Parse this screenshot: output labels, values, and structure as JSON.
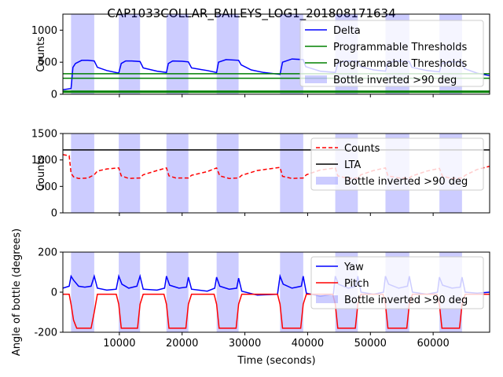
{
  "chart_data": [
    {
      "type": "line",
      "title": "CAP1033COLLAR_BAILEYS_LOG1_201808171634",
      "xlabel": "",
      "ylabel": "Counts",
      "xlim": [
        1000,
        69000
      ],
      "ylim": [
        0,
        1250
      ],
      "yticks": [
        0,
        500,
        1000
      ],
      "legend": "top-right",
      "inverted_spans": [
        [
          2300,
          6000
        ],
        [
          9900,
          13300
        ],
        [
          17500,
          21000
        ],
        [
          25500,
          29000
        ],
        [
          35600,
          39300
        ],
        [
          44400,
          48000
        ],
        [
          52400,
          56200
        ],
        [
          61000,
          64600
        ]
      ],
      "series": [
        {
          "name": "Delta",
          "color": "#0000ff",
          "style": "solid",
          "x": [
            1000,
            2300,
            2600,
            3000,
            4000,
            5000,
            6000,
            6500,
            8000,
            9900,
            10300,
            11000,
            12000,
            13300,
            13800,
            16000,
            17500,
            17800,
            18500,
            20000,
            21000,
            21500,
            24000,
            25500,
            25800,
            27000,
            29000,
            29400,
            31000,
            33000,
            35600,
            36000,
            37500,
            39300,
            39700,
            42000,
            44400,
            44800,
            46000,
            48000,
            48400,
            50500,
            52400,
            52800,
            54000,
            56200,
            56600,
            59000,
            61000,
            61400,
            63000,
            64600,
            65000,
            67000,
            69000
          ],
          "y": [
            70,
            90,
            420,
            480,
            530,
            530,
            520,
            420,
            370,
            330,
            480,
            520,
            520,
            510,
            410,
            360,
            340,
            480,
            520,
            515,
            505,
            410,
            370,
            340,
            500,
            540,
            530,
            460,
            380,
            340,
            310,
            500,
            550,
            540,
            430,
            360,
            340,
            480,
            520,
            515,
            430,
            380,
            360,
            490,
            520,
            510,
            420,
            370,
            350,
            480,
            510,
            500,
            400,
            330,
            290
          ]
        },
        {
          "name": "Programmable Thresholds",
          "color": "#008000",
          "style": "solid",
          "x": [
            1000,
            69000
          ],
          "y": [
            320,
            320
          ]
        },
        {
          "name": "Programmable Thresholds",
          "color": "#008000",
          "style": "solid",
          "x": [
            1000,
            69000
          ],
          "y": [
            250,
            250
          ]
        },
        {
          "name": "",
          "color": "#008000",
          "style": "solid",
          "x": [
            1000,
            69000
          ],
          "y": [
            40,
            40
          ]
        }
      ],
      "legend_entries": [
        "Delta",
        "Programmable Thresholds",
        "Programmable Thresholds",
        "Bottle inverted >90 deg"
      ]
    },
    {
      "type": "line",
      "title": "",
      "xlabel": "",
      "ylabel": "Counts",
      "xlim": [
        1000,
        69000
      ],
      "ylim": [
        0,
        1500
      ],
      "yticks": [
        0,
        500,
        1000,
        1500
      ],
      "legend": "top-right",
      "inverted_spans": [
        [
          2300,
          6000
        ],
        [
          9900,
          13300
        ],
        [
          17500,
          21000
        ],
        [
          25500,
          29000
        ],
        [
          35600,
          39300
        ],
        [
          44400,
          48000
        ],
        [
          52400,
          56200
        ],
        [
          61000,
          64600
        ]
      ],
      "series": [
        {
          "name": "Counts",
          "color": "#ff0000",
          "style": "dashed",
          "x": [
            1000,
            2000,
            2300,
            2700,
            3500,
            5000,
            6000,
            6500,
            8000,
            9900,
            10300,
            11500,
            13300,
            13800,
            16000,
            17500,
            17900,
            19000,
            21000,
            21500,
            24000,
            25500,
            26000,
            27500,
            29000,
            29500,
            32000,
            35600,
            36000,
            37500,
            39300,
            39800,
            42000,
            44400,
            44800,
            46500,
            48000,
            48500,
            50500,
            52400,
            52800,
            54500,
            56200,
            56700,
            59000,
            61000,
            61500,
            63000,
            64600,
            65100,
            67000,
            69000
          ],
          "y": [
            1100,
            1080,
            750,
            680,
            650,
            660,
            720,
            790,
            830,
            850,
            700,
            650,
            660,
            720,
            800,
            850,
            700,
            660,
            660,
            710,
            780,
            850,
            700,
            650,
            660,
            710,
            800,
            860,
            690,
            650,
            660,
            720,
            810,
            850,
            700,
            650,
            660,
            720,
            800,
            850,
            700,
            660,
            660,
            700,
            790,
            840,
            690,
            650,
            660,
            710,
            820,
            880
          ]
        },
        {
          "name": "LTA",
          "color": "#000000",
          "style": "solid",
          "x": [
            1000,
            69000
          ],
          "y": [
            1190,
            1190
          ]
        }
      ],
      "legend_entries": [
        "Counts",
        "LTA",
        "Bottle inverted >90 deg"
      ]
    },
    {
      "type": "line",
      "title": "",
      "xlabel": "Time (seconds)",
      "ylabel": "Angle of bottle (degrees)",
      "xlim": [
        1000,
        69000
      ],
      "ylim": [
        -200,
        200
      ],
      "yticks": [
        -200,
        0,
        200
      ],
      "xticks": [
        10000,
        20000,
        30000,
        40000,
        50000,
        60000
      ],
      "legend": "top-right",
      "inverted_spans": [
        [
          2300,
          6000
        ],
        [
          9900,
          13300
        ],
        [
          17500,
          21000
        ],
        [
          25500,
          29000
        ],
        [
          35600,
          39300
        ],
        [
          44400,
          48000
        ],
        [
          52400,
          56200
        ],
        [
          61000,
          64600
        ]
      ],
      "series": [
        {
          "name": "Yaw",
          "color": "#0000ff",
          "style": "solid",
          "x": [
            1000,
            2000,
            2300,
            2700,
            3500,
            4500,
            5500,
            6000,
            6500,
            8000,
            9500,
            9900,
            10400,
            11500,
            12800,
            13300,
            13800,
            16000,
            17200,
            17500,
            18000,
            19500,
            20700,
            21000,
            21500,
            24000,
            25200,
            25500,
            26000,
            27500,
            28700,
            29000,
            29500,
            32000,
            35200,
            35600,
            36100,
            37500,
            39000,
            39300,
            39800,
            42000,
            44100,
            44400,
            44900,
            46500,
            47700,
            48000,
            48500,
            50500,
            52100,
            52400,
            52900,
            54500,
            55900,
            56200,
            56700,
            59000,
            60700,
            61000,
            61500,
            63000,
            64300,
            64600,
            65100,
            67000,
            69000
          ],
          "y": [
            20,
            30,
            80,
            60,
            30,
            25,
            30,
            80,
            20,
            10,
            15,
            80,
            40,
            20,
            30,
            80,
            15,
            10,
            20,
            80,
            35,
            20,
            25,
            75,
            15,
            5,
            20,
            75,
            30,
            15,
            20,
            70,
            5,
            -15,
            -10,
            80,
            40,
            20,
            30,
            80,
            -5,
            -20,
            -10,
            80,
            40,
            20,
            30,
            80,
            0,
            -10,
            0,
            80,
            40,
            20,
            30,
            80,
            0,
            -10,
            0,
            75,
            35,
            20,
            25,
            75,
            0,
            -5,
            0
          ]
        },
        {
          "name": "Pitch",
          "color": "#ff0000",
          "style": "solid",
          "x": [
            1000,
            2000,
            2300,
            2700,
            3200,
            5500,
            6000,
            6500,
            9500,
            9900,
            10300,
            12900,
            13300,
            13800,
            17100,
            17500,
            17900,
            20600,
            21000,
            21500,
            25100,
            25500,
            25900,
            28600,
            29000,
            29500,
            35200,
            35600,
            36000,
            38900,
            39300,
            39800,
            44000,
            44400,
            44800,
            47600,
            48000,
            48500,
            52000,
            52400,
            52800,
            55800,
            56200,
            56700,
            60600,
            61000,
            61400,
            64200,
            64600,
            65100,
            69000
          ],
          "y": [
            -10,
            -10,
            -60,
            -140,
            -180,
            -180,
            -100,
            -10,
            -10,
            -60,
            -180,
            -180,
            -60,
            -10,
            -10,
            -60,
            -180,
            -180,
            -60,
            -10,
            -10,
            -60,
            -180,
            -180,
            -60,
            -10,
            -10,
            -60,
            -180,
            -180,
            -60,
            -10,
            -10,
            -60,
            -180,
            -180,
            -60,
            -10,
            -10,
            -60,
            -180,
            -180,
            -60,
            -10,
            -10,
            -60,
            -180,
            -180,
            -60,
            -10,
            -10
          ]
        }
      ],
      "legend_entries": [
        "Yaw",
        "Pitch",
        "Bottle inverted >90 deg"
      ]
    }
  ]
}
